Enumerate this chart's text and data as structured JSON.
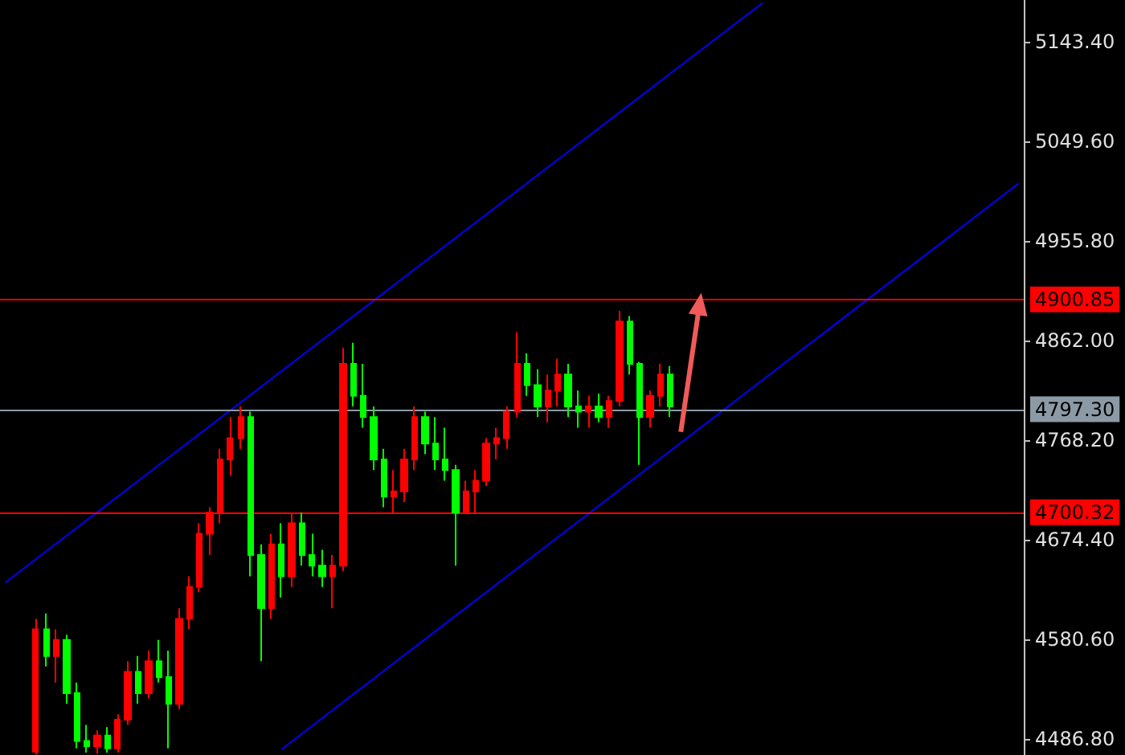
{
  "chart_data": {
    "type": "candlestick",
    "categories": [
      null,
      null,
      null,
      null,
      null,
      null,
      null,
      null,
      null,
      null,
      null,
      null,
      null,
      null,
      null,
      null,
      null,
      null,
      null,
      null,
      null,
      null,
      null,
      null,
      null,
      null,
      null,
      null,
      null,
      null,
      null,
      null,
      null,
      null,
      null,
      null,
      null,
      null,
      null,
      null,
      null,
      null,
      null,
      null,
      null,
      null,
      null,
      null,
      null,
      null,
      null,
      null,
      null,
      null,
      null,
      null,
      null,
      null,
      null,
      null,
      null,
      null,
      null,
      null,
      null,
      null,
      null,
      null,
      null,
      null,
      null,
      null,
      null,
      null,
      null,
      null,
      null,
      null,
      null,
      null,
      null,
      null,
      null,
      null,
      null,
      null,
      null,
      null,
      null,
      null,
      null,
      null,
      null,
      null,
      null,
      null,
      null,
      null,
      null,
      null
    ],
    "ohlc": [
      null,
      null,
      null,
      [
        4475,
        4600,
        4472,
        4590
      ],
      [
        4590,
        4605,
        4555,
        4565
      ],
      [
        4565,
        4590,
        4540,
        4580
      ],
      [
        4580,
        4585,
        4520,
        4530
      ],
      [
        4530,
        4540,
        4478,
        4485
      ],
      [
        4485,
        4500,
        4474,
        4480
      ],
      [
        4480,
        4495,
        4473,
        4490
      ],
      [
        4490,
        4498,
        4474,
        4478
      ],
      [
        4478,
        4510,
        4474,
        4505
      ],
      [
        4505,
        4560,
        4500,
        4550
      ],
      [
        4550,
        4565,
        4520,
        4530
      ],
      [
        4530,
        4570,
        4525,
        4560
      ],
      [
        4560,
        4580,
        4540,
        4545
      ],
      [
        4545,
        4570,
        4478,
        4520
      ],
      [
        4520,
        4610,
        4515,
        4600
      ],
      [
        4600,
        4640,
        4590,
        4630
      ],
      [
        4630,
        4690,
        4625,
        4680
      ],
      [
        4680,
        4705,
        4660,
        4700
      ],
      [
        4700,
        4760,
        4690,
        4750
      ],
      [
        4750,
        4790,
        4735,
        4770
      ],
      [
        4770,
        4800,
        4760,
        4790
      ],
      [
        4790,
        4795,
        4640,
        4660
      ],
      [
        4660,
        4670,
        4560,
        4610
      ],
      [
        4610,
        4680,
        4600,
        4670
      ],
      [
        4670,
        4690,
        4620,
        4640
      ],
      [
        4640,
        4700,
        4630,
        4690
      ],
      [
        4690,
        4700,
        4650,
        4660
      ],
      [
        4660,
        4680,
        4640,
        4650
      ],
      [
        4650,
        4665,
        4630,
        4640
      ],
      [
        4640,
        4660,
        4610,
        4650
      ],
      [
        4650,
        4855,
        4645,
        4840
      ],
      [
        4840,
        4860,
        4800,
        4810
      ],
      [
        4810,
        4840,
        4780,
        4790
      ],
      [
        4790,
        4800,
        4740,
        4750
      ],
      [
        4750,
        4760,
        4705,
        4715
      ],
      [
        4715,
        4740,
        4700,
        4720
      ],
      [
        4720,
        4760,
        4710,
        4750
      ],
      [
        4750,
        4800,
        4740,
        4790
      ],
      [
        4790,
        4795,
        4755,
        4765
      ],
      [
        4765,
        4790,
        4740,
        4750
      ],
      [
        4750,
        4780,
        4730,
        4740
      ],
      [
        4740,
        4745,
        4650,
        4700
      ],
      [
        4700,
        4730,
        4700,
        4720
      ],
      [
        4720,
        4740,
        4700,
        4730
      ],
      [
        4730,
        4770,
        4725,
        4765
      ],
      [
        4765,
        4780,
        4750,
        4770
      ],
      [
        4770,
        4800,
        4760,
        4795
      ],
      [
        4795,
        4870,
        4790,
        4840
      ],
      [
        4840,
        4850,
        4810,
        4820
      ],
      [
        4820,
        4835,
        4790,
        4800
      ],
      [
        4800,
        4830,
        4785,
        4815
      ],
      [
        4815,
        4845,
        4800,
        4830
      ],
      [
        4830,
        4840,
        4790,
        4800
      ],
      [
        4800,
        4815,
        4780,
        4795
      ],
      [
        4795,
        4810,
        4780,
        4800
      ],
      [
        4800,
        4812,
        4785,
        4790
      ],
      [
        4790,
        4810,
        4780,
        4805
      ],
      [
        4805,
        4890,
        4800,
        4880
      ],
      [
        4880,
        4885,
        4830,
        4840
      ],
      [
        4840,
        4842,
        4745,
        4790
      ],
      [
        4790,
        4815,
        4780,
        4810
      ],
      [
        4810,
        4840,
        4800,
        4830
      ],
      [
        4830,
        4838,
        4790,
        4800
      ],
      null,
      null,
      null,
      null,
      null,
      null,
      null,
      null,
      null,
      null,
      null,
      null,
      null,
      null,
      null,
      null,
      null,
      null,
      null,
      null,
      null,
      null,
      null,
      null,
      null,
      null,
      null,
      null,
      null,
      null,
      null,
      null,
      null,
      null
    ],
    "colors": [
      null,
      null,
      null,
      "#ff0000",
      "#00ff00",
      "#ff0000",
      "#00ff00",
      "#00ff00",
      "#00ff00",
      "#ff0000",
      "#00ff00",
      "#ff0000",
      "#ff0000",
      "#00ff00",
      "#ff0000",
      "#00ff00",
      "#00ff00",
      "#ff0000",
      "#ff0000",
      "#ff0000",
      "#ff0000",
      "#ff0000",
      "#ff0000",
      "#ff0000",
      "#00ff00",
      "#00ff00",
      "#ff0000",
      "#00ff00",
      "#ff0000",
      "#00ff00",
      "#00ff00",
      "#00ff00",
      "#ff0000",
      "#ff0000",
      "#00ff00",
      "#00ff00",
      "#00ff00",
      "#00ff00",
      "#ff0000",
      "#ff0000",
      "#ff0000",
      "#00ff00",
      "#00ff00",
      "#00ff00",
      "#00ff00",
      "#ff0000",
      "#ff0000",
      "#ff0000",
      "#ff0000",
      "#ff0000",
      "#ff0000",
      "#00ff00",
      "#00ff00",
      "#ff0000",
      "#ff0000",
      "#00ff00",
      "#00ff00",
      "#ff0000",
      "#00ff00",
      "#ff0000",
      "#ff0000",
      "#00ff00",
      "#00ff00",
      "#ff0000",
      "#ff0000",
      "#00ff00",
      null,
      null,
      null,
      null,
      null,
      null,
      null,
      null,
      null,
      null,
      null,
      null,
      null,
      null,
      null,
      null,
      null,
      null,
      null,
      null,
      null,
      null,
      null,
      null,
      null,
      null,
      null,
      null,
      null,
      null,
      null,
      null,
      null,
      null
    ],
    "series": [
      {
        "type": "line",
        "color": "#0000ff",
        "values": [
          4634,
          null,
          null,
          null,
          null,
          null,
          null,
          null,
          null,
          null,
          null,
          null,
          null,
          null,
          null,
          null,
          null,
          null,
          null,
          null,
          null,
          null,
          null,
          null,
          null,
          null,
          null,
          null,
          null,
          null,
          null,
          null,
          null,
          null,
          null,
          null,
          null,
          null,
          null,
          null,
          null,
          null,
          null,
          null,
          null,
          null,
          null,
          null,
          null,
          null,
          null,
          null,
          null,
          null,
          null,
          null,
          null,
          null,
          null,
          null,
          null,
          null,
          null,
          null,
          null,
          null,
          null,
          null,
          null,
          null,
          null,
          null,
          null,
          null,
          5180,
          null,
          null,
          null,
          null,
          null,
          null,
          null,
          null,
          null,
          null,
          null,
          null,
          null,
          null,
          null,
          null,
          null,
          null,
          null,
          null,
          null,
          null,
          null,
          null,
          null
        ]
      },
      {
        "type": "line",
        "color": "#0000ff",
        "values": [
          null,
          null,
          null,
          null,
          null,
          null,
          null,
          null,
          null,
          null,
          null,
          null,
          null,
          null,
          null,
          null,
          null,
          null,
          null,
          null,
          null,
          null,
          null,
          null,
          null,
          null,
          null,
          4477,
          null,
          null,
          null,
          null,
          null,
          null,
          null,
          null,
          null,
          null,
          null,
          null,
          null,
          null,
          null,
          null,
          null,
          null,
          null,
          null,
          null,
          null,
          null,
          null,
          null,
          null,
          null,
          null,
          null,
          null,
          null,
          null,
          null,
          null,
          null,
          null,
          null,
          null,
          null,
          null,
          null,
          null,
          null,
          null,
          null,
          null,
          null,
          null,
          null,
          null,
          null,
          null,
          null,
          null,
          null,
          null,
          null,
          null,
          null,
          null,
          null,
          null,
          null,
          null,
          null,
          null,
          null,
          null,
          null,
          null,
          null,
          5010
        ]
      }
    ],
    "ylim": [
      4471.7,
      5182.7
    ],
    "yticks": [
      {
        "value": 4486.8,
        "label": "4486.80"
      },
      {
        "value": 4580.6,
        "label": "4580.60"
      },
      {
        "value": 4674.4,
        "label": "4674.40"
      },
      {
        "value": 4768.2,
        "label": "4768.20"
      },
      {
        "value": 4862,
        "label": "4862.00"
      },
      {
        "value": 4955.8,
        "label": "4955.80"
      },
      {
        "value": 5049.6,
        "label": "5049.60"
      },
      {
        "value": 5143.4,
        "label": "5143.40"
      }
    ],
    "ref_lines": [
      {
        "axis": "y",
        "value": 4900.85,
        "label": "4900.85",
        "color": "#ff0000"
      },
      {
        "axis": "y",
        "value": 4797.3,
        "label": "4797.30",
        "color": "#8c9aa6"
      },
      {
        "axis": "y",
        "value": 4700.32,
        "label": "4700.32",
        "color": "#ff0000"
      }
    ],
    "tick_labels": "y",
    "grid": false
  }
}
